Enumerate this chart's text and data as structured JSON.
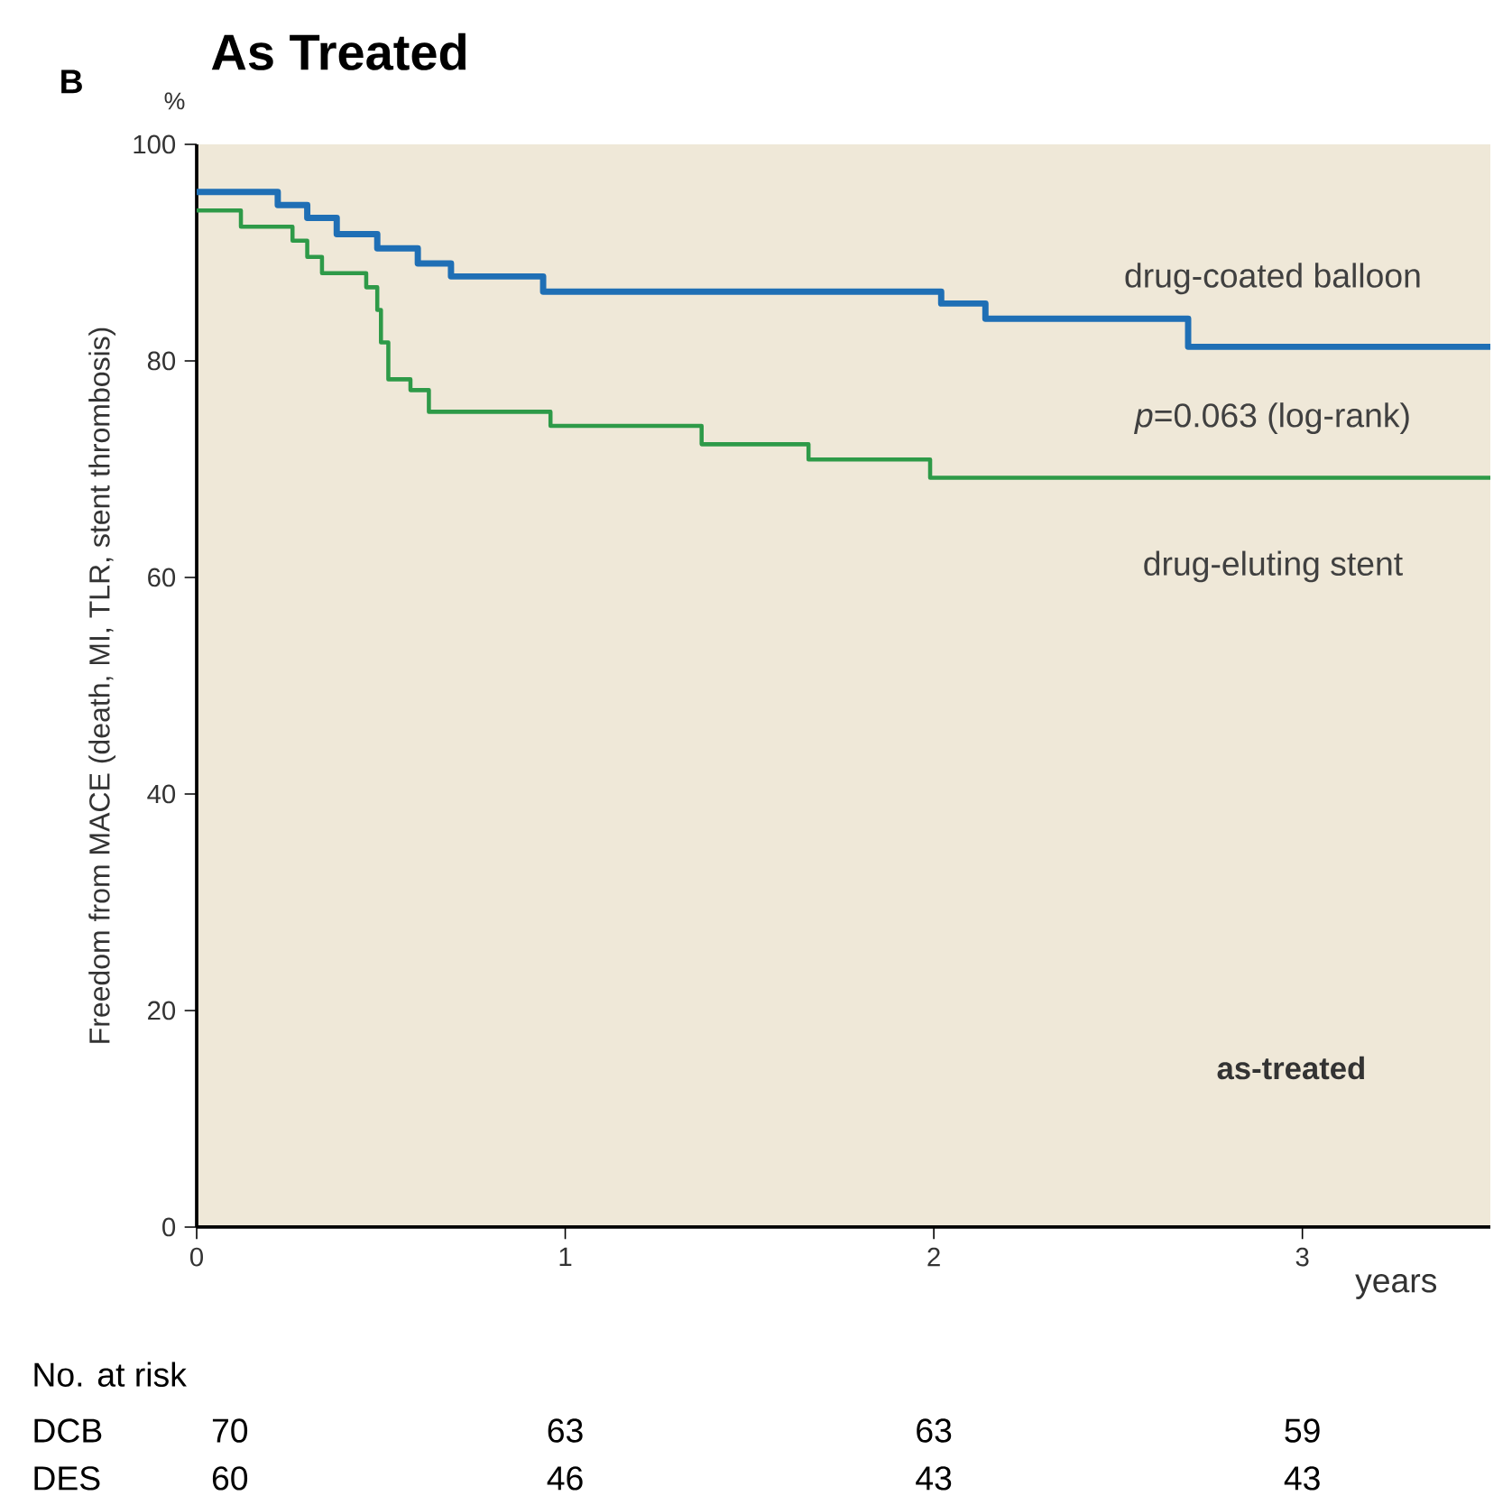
{
  "chart_data": {
    "type": "step",
    "title": "As Treated",
    "xlabel": "years",
    "ylabel": "Freedom from MACE (death, MI, TLR, stent thrombosis)",
    "xlim": [
      0,
      3.51
    ],
    "ylim": [
      0,
      100
    ],
    "xticks": [
      0,
      1,
      2,
      3
    ],
    "yticks": [
      0,
      20,
      40,
      60,
      80,
      100
    ],
    "grid": false,
    "legend": false,
    "series": [
      {
        "name": "drug-coated balloon",
        "color": "#1f6fb5",
        "x": [
          0,
          0.22,
          0.3,
          0.38,
          0.49,
          0.6,
          0.69,
          0.94,
          2.02,
          2.14,
          2.69,
          3.51
        ],
        "values": [
          95.6,
          94.4,
          93.2,
          91.7,
          90.4,
          89.0,
          87.8,
          86.4,
          85.3,
          83.9,
          81.3,
          81.3
        ]
      },
      {
        "name": "drug-eluting stent",
        "color": "#2e9a48",
        "x": [
          0,
          0.12,
          0.26,
          0.3,
          0.34,
          0.46,
          0.49,
          0.5,
          0.52,
          0.58,
          0.63,
          0.96,
          1.37,
          1.66,
          1.99,
          3.51
        ],
        "values": [
          93.9,
          92.4,
          91.1,
          89.6,
          88.1,
          86.8,
          84.7,
          81.7,
          78.3,
          77.3,
          75.3,
          74.0,
          72.3,
          70.9,
          69.2,
          69.2
        ]
      }
    ],
    "annotations": [
      "B",
      "%",
      "*p*=0.063 (log-rank)",
      "as-treated",
      "No. at risk",
      "DCB",
      "70",
      "63",
      "63",
      "59",
      "DES",
      "60",
      "46",
      "43",
      "43"
    ]
  }
}
